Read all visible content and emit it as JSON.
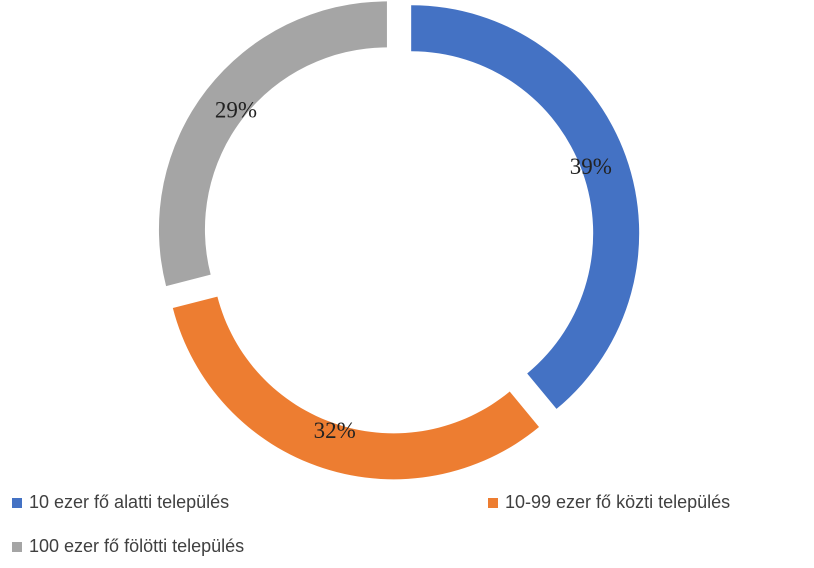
{
  "chart_data": {
    "type": "donut",
    "categories": [
      "10 ezer fő alatti település",
      "10-99 ezer fő közti település",
      "100 ezer fő fölötti település"
    ],
    "values": [
      39,
      32,
      29
    ],
    "value_labels": [
      "39%",
      "32%",
      "29%"
    ],
    "colors": [
      "#4472c4",
      "#ed7d31",
      "#a5a5a5"
    ],
    "legend": "bottom"
  }
}
